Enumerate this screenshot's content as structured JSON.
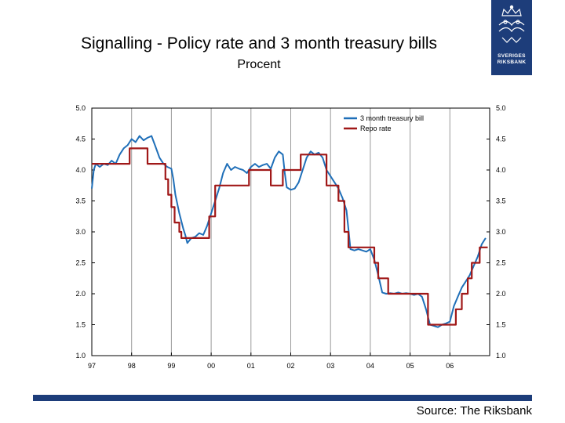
{
  "title": "Signalling - Policy rate and 3 month treasury bills",
  "subtitle": "Procent",
  "source": "Source: The Riksbank",
  "logo": {
    "text_line1": "SVERIGES",
    "text_line2": "RIKSBANK"
  },
  "colors": {
    "brand": "#1d3d7a",
    "tbill": "#1f6fb8",
    "repo": "#a01818",
    "grid": "#9a9a9a"
  },
  "chart_data": {
    "type": "line",
    "title": "Signalling - Policy rate and 3 month treasury bills",
    "ylabel": "Procent",
    "xlim": [
      1997.0,
      2007.0
    ],
    "ylim": [
      1.0,
      5.0
    ],
    "yticks": [
      "5.0",
      "4.5",
      "4.0",
      "3.5",
      "3.0",
      "2.5",
      "2.0",
      "1.5",
      "1.0"
    ],
    "xticks": [
      "97",
      "98",
      "99",
      "00",
      "01",
      "02",
      "03",
      "04",
      "05",
      "06"
    ],
    "legend": [
      "3 month treasury bill",
      "Repo rate"
    ],
    "legend_position": "top-right",
    "series": [
      {
        "name": "3 month treasury bill",
        "x": [
          1997.0,
          1997.05,
          1997.1,
          1997.2,
          1997.3,
          1997.4,
          1997.5,
          1997.6,
          1997.7,
          1997.8,
          1997.9,
          1998.0,
          1998.1,
          1998.2,
          1998.3,
          1998.4,
          1998.5,
          1998.6,
          1998.7,
          1998.8,
          1998.9,
          1999.0,
          1999.05,
          1999.1,
          1999.15,
          1999.2,
          1999.3,
          1999.35,
          1999.4,
          1999.5,
          1999.6,
          1999.7,
          1999.8,
          1999.9,
          2000.0,
          2000.1,
          2000.2,
          2000.3,
          2000.4,
          2000.5,
          2000.6,
          2000.7,
          2000.8,
          2000.9,
          2001.0,
          2001.1,
          2001.2,
          2001.3,
          2001.4,
          2001.5,
          2001.6,
          2001.7,
          2001.8,
          2001.85,
          2001.9,
          2002.0,
          2002.1,
          2002.2,
          2002.3,
          2002.4,
          2002.5,
          2002.6,
          2002.7,
          2002.8,
          2002.9,
          2003.0,
          2003.1,
          2003.2,
          2003.3,
          2003.4,
          2003.45,
          2003.5,
          2003.6,
          2003.7,
          2003.8,
          2003.9,
          2004.0,
          2004.1,
          2004.2,
          2004.3,
          2004.4,
          2004.5,
          2004.6,
          2004.7,
          2004.8,
          2004.9,
          2005.0,
          2005.1,
          2005.2,
          2005.3,
          2005.4,
          2005.5,
          2005.6,
          2005.7,
          2005.8,
          2005.9,
          2006.0,
          2006.1,
          2006.2,
          2006.3,
          2006.4,
          2006.5,
          2006.6,
          2006.7,
          2006.8,
          2006.9
        ],
        "values": [
          3.7,
          4.0,
          4.1,
          4.05,
          4.1,
          4.08,
          4.15,
          4.1,
          4.25,
          4.35,
          4.4,
          4.5,
          4.45,
          4.55,
          4.48,
          4.52,
          4.55,
          4.38,
          4.2,
          4.1,
          4.05,
          4.02,
          3.85,
          3.6,
          3.45,
          3.3,
          3.05,
          2.95,
          2.82,
          2.9,
          2.92,
          2.98,
          2.95,
          3.1,
          3.3,
          3.5,
          3.7,
          3.95,
          4.1,
          4.0,
          4.05,
          4.02,
          4.0,
          3.95,
          4.05,
          4.1,
          4.05,
          4.08,
          4.1,
          4.02,
          4.2,
          4.3,
          4.25,
          3.95,
          3.72,
          3.68,
          3.7,
          3.8,
          4.0,
          4.2,
          4.3,
          4.25,
          4.28,
          4.2,
          4.0,
          3.9,
          3.8,
          3.7,
          3.55,
          3.35,
          3.05,
          2.72,
          2.7,
          2.72,
          2.7,
          2.68,
          2.72,
          2.55,
          2.3,
          2.02,
          2.0,
          2.01,
          2.0,
          2.02,
          2.0,
          2.01,
          2.0,
          1.98,
          2.0,
          1.95,
          1.75,
          1.5,
          1.48,
          1.46,
          1.5,
          1.52,
          1.55,
          1.8,
          1.95,
          2.1,
          2.2,
          2.3,
          2.45,
          2.6,
          2.8,
          2.9
        ]
      },
      {
        "name": "Repo rate",
        "x": [
          1997.0,
          1997.95,
          1997.95,
          1998.4,
          1998.4,
          1998.85,
          1998.85,
          1998.92,
          1998.92,
          1999.0,
          1999.0,
          1999.08,
          1999.08,
          1999.2,
          1999.2,
          1999.25,
          1999.25,
          1999.3,
          1999.3,
          1999.35,
          1999.35,
          1999.95,
          1999.95,
          2000.1,
          2000.1,
          2000.95,
          2000.95,
          2001.5,
          2001.5,
          2001.7,
          2001.7,
          2001.8,
          2001.8,
          2002.25,
          2002.25,
          2002.45,
          2002.45,
          2002.9,
          2002.9,
          2003.2,
          2003.2,
          2003.35,
          2003.35,
          2003.45,
          2003.45,
          2003.5,
          2003.5,
          2004.1,
          2004.1,
          2004.2,
          2004.2,
          2004.45,
          2004.45,
          2005.45,
          2005.45,
          2005.6,
          2005.6,
          2006.15,
          2006.15,
          2006.3,
          2006.3,
          2006.45,
          2006.45,
          2006.55,
          2006.55,
          2006.75,
          2006.75,
          2006.95
        ],
        "values": [
          4.1,
          4.1,
          4.35,
          4.35,
          4.1,
          4.1,
          3.85,
          3.85,
          3.6,
          3.6,
          3.4,
          3.4,
          3.15,
          3.15,
          3.0,
          3.0,
          2.9,
          2.9,
          2.9,
          2.9,
          2.9,
          2.9,
          3.25,
          3.25,
          3.75,
          3.75,
          4.0,
          4.0,
          3.75,
          3.75,
          3.75,
          3.75,
          4.0,
          4.0,
          4.25,
          4.25,
          4.25,
          4.25,
          3.75,
          3.75,
          3.5,
          3.5,
          3.0,
          3.0,
          2.75,
          2.75,
          2.75,
          2.75,
          2.5,
          2.5,
          2.25,
          2.25,
          2.0,
          2.0,
          1.5,
          1.5,
          1.5,
          1.5,
          1.75,
          1.75,
          2.0,
          2.0,
          2.25,
          2.25,
          2.5,
          2.5,
          2.75,
          2.75
        ]
      }
    ]
  }
}
